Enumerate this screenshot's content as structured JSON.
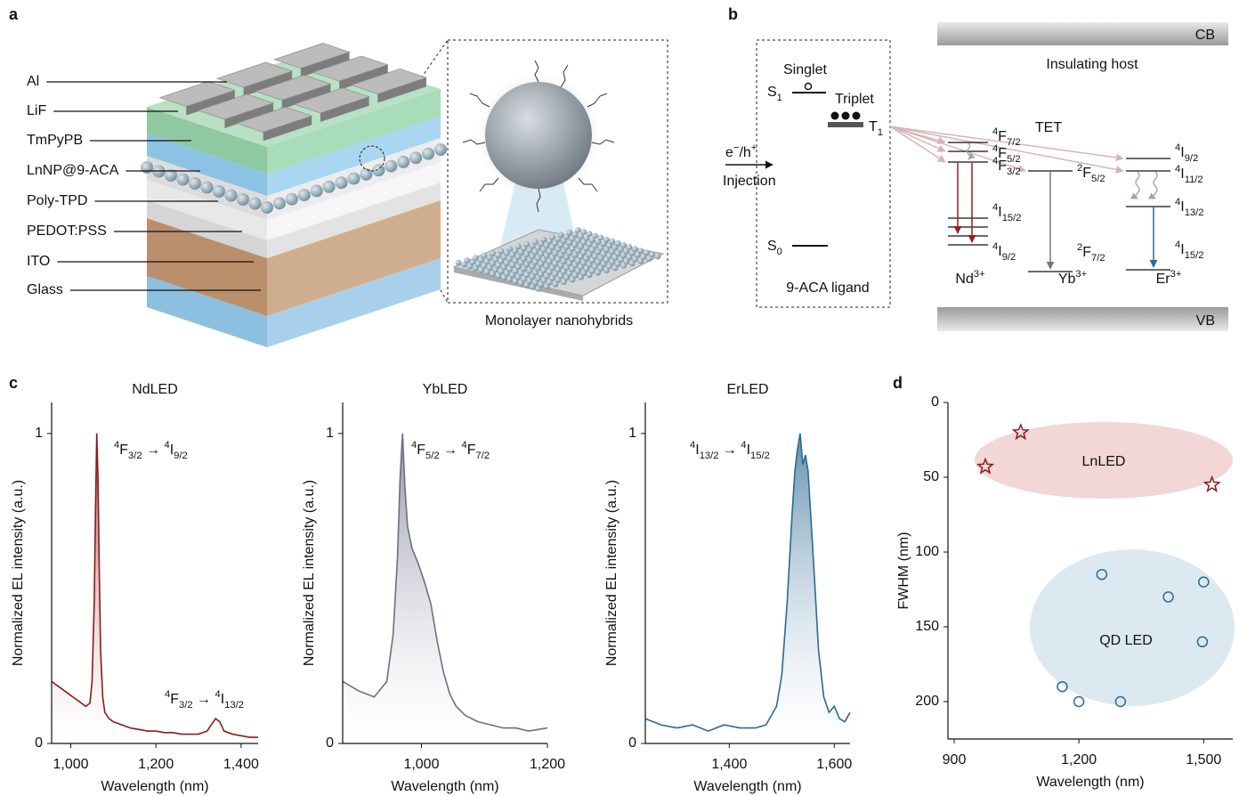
{
  "panel_labels": [
    "a",
    "b",
    "c",
    "d"
  ],
  "panel_a": {
    "layers": [
      "Al",
      "LiF",
      "TmPyPB",
      "LnNP@9-ACA",
      "Poly-TPD",
      "PEDOT:PSS",
      "ITO",
      "Glass"
    ],
    "inset_caption": "Monolayer nanohybrids"
  },
  "panel_b": {
    "ligand": {
      "singlet": "Singlet",
      "triplet": "Triplet",
      "s1": [
        {
          "text": "S"
        },
        {
          "sub": "1"
        }
      ],
      "t1": [
        {
          "text": "T"
        },
        {
          "sub": "1"
        }
      ],
      "s0": [
        {
          "text": "S"
        },
        {
          "sub": "0"
        }
      ],
      "charges": [
        {
          "text": "e"
        },
        {
          "sup": "−"
        },
        {
          "text": "/h"
        },
        {
          "sup": "+"
        }
      ],
      "injection": "Injection",
      "caption": "9-ACA ligand"
    },
    "host": {
      "cb": "CB",
      "vb": "VB",
      "caption": "Insulating host",
      "tet": "TET"
    },
    "ions": [
      {
        "name": [
          {
            "text": "Nd"
          },
          {
            "sup": "3+"
          }
        ],
        "levels": [
          [
            {
              "sup": "4"
            },
            {
              "text": "F"
            },
            {
              "sub": "7/2"
            }
          ],
          [
            {
              "sup": "4"
            },
            {
              "text": "F"
            },
            {
              "sub": "5/2"
            }
          ],
          [
            {
              "sup": "4"
            },
            {
              "text": "F"
            },
            {
              "sub": "3/2"
            }
          ],
          [
            {
              "sup": "4"
            },
            {
              "text": "I"
            },
            {
              "sub": "15/2"
            }
          ],
          [
            {
              "sup": "4"
            },
            {
              "text": "I"
            },
            {
              "sub": "9/2"
            }
          ]
        ]
      },
      {
        "name": [
          {
            "text": "Yb"
          },
          {
            "sup": "3+"
          }
        ],
        "levels": [
          [
            {
              "sup": "2"
            },
            {
              "text": "F"
            },
            {
              "sub": "5/2"
            }
          ],
          [
            {
              "sup": "2"
            },
            {
              "text": "F"
            },
            {
              "sub": "7/2"
            }
          ]
        ]
      },
      {
        "name": [
          {
            "text": "Er"
          },
          {
            "sup": "3+"
          }
        ],
        "levels": [
          [
            {
              "sup": "4"
            },
            {
              "text": "I"
            },
            {
              "sub": "9/2"
            }
          ],
          [
            {
              "sup": "4"
            },
            {
              "text": "I"
            },
            {
              "sub": "11/2"
            }
          ],
          [
            {
              "sup": "4"
            },
            {
              "text": "I"
            },
            {
              "sub": "13/2"
            }
          ],
          [
            {
              "sup": "4"
            },
            {
              "text": "I"
            },
            {
              "sub": "15/2"
            }
          ]
        ]
      }
    ]
  },
  "chart_data": [
    {
      "type": "line",
      "title": "NdLED",
      "color": "#8b1a1a",
      "x": [
        955,
        965,
        975,
        985,
        995,
        1005,
        1015,
        1025,
        1035,
        1045,
        1050,
        1055,
        1058,
        1061,
        1064,
        1067,
        1070,
        1075,
        1080,
        1090,
        1100,
        1120,
        1140,
        1160,
        1180,
        1200,
        1220,
        1240,
        1260,
        1280,
        1300,
        1320,
        1330,
        1340,
        1350,
        1360,
        1380,
        1400,
        1420,
        1440
      ],
      "values": [
        0.2,
        0.19,
        0.18,
        0.17,
        0.16,
        0.15,
        0.14,
        0.13,
        0.12,
        0.13,
        0.2,
        0.45,
        0.75,
        1.0,
        0.85,
        0.55,
        0.3,
        0.15,
        0.1,
        0.08,
        0.07,
        0.06,
        0.05,
        0.045,
        0.04,
        0.04,
        0.035,
        0.035,
        0.03,
        0.03,
        0.03,
        0.04,
        0.06,
        0.08,
        0.07,
        0.04,
        0.03,
        0.025,
        0.02,
        0.02
      ],
      "xlim": [
        955,
        1440
      ],
      "ylim": [
        0,
        1.1
      ],
      "xticks": [
        {
          "value": 1000,
          "label": "1,000"
        },
        {
          "value": 1200,
          "label": "1,200"
        },
        {
          "value": 1400,
          "label": "1,400"
        }
      ],
      "yticks": [
        0,
        1
      ],
      "xlabel": "Wavelength (nm)",
      "ylabel": "Normalized EL intensity (a.u.)",
      "annotations": [
        [
          {
            "sup": "4"
          },
          {
            "text": "F"
          },
          {
            "sub": "3/2"
          },
          {
            "text": " → "
          },
          {
            "sup": "4"
          },
          {
            "text": "I"
          },
          {
            "sub": "9/2"
          }
        ],
        [
          {
            "sup": "4"
          },
          {
            "text": "F"
          },
          {
            "sub": "3/2"
          },
          {
            "text": " → "
          },
          {
            "sup": "4"
          },
          {
            "text": "I"
          },
          {
            "sub": "13/2"
          }
        ]
      ]
    },
    {
      "type": "line",
      "title": "YbLED",
      "color": "#6b6f86",
      "x": [
        875,
        900,
        925,
        945,
        955,
        962,
        966,
        970,
        974,
        978,
        985,
        995,
        1005,
        1015,
        1025,
        1035,
        1045,
        1055,
        1070,
        1090,
        1110,
        1130,
        1150,
        1170,
        1200
      ],
      "values": [
        0.2,
        0.17,
        0.15,
        0.2,
        0.35,
        0.6,
        0.85,
        1.0,
        0.82,
        0.7,
        0.63,
        0.58,
        0.52,
        0.45,
        0.33,
        0.23,
        0.16,
        0.12,
        0.09,
        0.07,
        0.06,
        0.05,
        0.05,
        0.04,
        0.05
      ],
      "xlim": [
        875,
        1200
      ],
      "ylim": [
        0,
        1.1
      ],
      "xticks": [
        {
          "value": 1000,
          "label": "1,000"
        },
        {
          "value": 1200,
          "label": "1,200"
        }
      ],
      "yticks": [
        0,
        1
      ],
      "xlabel": "Wavelength (nm)",
      "ylabel": "Normalized EL intensity (a.u.)",
      "annotations": [
        [
          {
            "sup": "4"
          },
          {
            "text": "F"
          },
          {
            "sub": "5/2"
          },
          {
            "text": " → "
          },
          {
            "sup": "4"
          },
          {
            "text": "F"
          },
          {
            "sub": "7/2"
          }
        ]
      ]
    },
    {
      "type": "line",
      "title": "ErLED",
      "color": "#2a6a93",
      "x": [
        1240,
        1270,
        1300,
        1330,
        1360,
        1390,
        1420,
        1450,
        1470,
        1490,
        1500,
        1510,
        1520,
        1525,
        1530,
        1535,
        1540,
        1545,
        1550,
        1560,
        1570,
        1580,
        1590,
        1600,
        1610,
        1620,
        1630
      ],
      "values": [
        0.08,
        0.06,
        0.05,
        0.06,
        0.04,
        0.06,
        0.05,
        0.05,
        0.06,
        0.12,
        0.22,
        0.45,
        0.75,
        0.88,
        0.95,
        1.0,
        0.9,
        0.93,
        0.88,
        0.6,
        0.3,
        0.15,
        0.1,
        0.12,
        0.08,
        0.07,
        0.1
      ],
      "xlim": [
        1240,
        1630
      ],
      "ylim": [
        0,
        1.1
      ],
      "xticks": [
        {
          "value": 1400,
          "label": "1,400"
        },
        {
          "value": 1600,
          "label": "1,600"
        }
      ],
      "yticks": [
        0,
        1
      ],
      "xlabel": "Wavelength (nm)",
      "ylabel": "Normalized EL intensity (a.u.)",
      "annotations": [
        [
          {
            "sup": "4"
          },
          {
            "text": "I"
          },
          {
            "sub": "13/2"
          },
          {
            "text": " → "
          },
          {
            "sup": "4"
          },
          {
            "text": "I"
          },
          {
            "sub": "15/2"
          }
        ]
      ]
    },
    {
      "type": "scatter",
      "series": [
        {
          "name": "LnLED",
          "color": "#8b1a1a",
          "marker": "star",
          "x": [
            975,
            1060,
            1520
          ],
          "values": [
            43,
            20,
            55
          ]
        },
        {
          "name": "QD LED",
          "color": "#2f6b8f",
          "marker": "circle",
          "x": [
            1255,
            1415,
            1500,
            1497,
            1160,
            1200,
            1300
          ],
          "values": [
            115,
            130,
            120,
            160,
            190,
            200,
            200
          ]
        }
      ],
      "xlim": [
        885,
        1570
      ],
      "ylim": [
        225,
        0
      ],
      "xticks": [
        900,
        {
          "value": 1200,
          "label": "1,200"
        },
        {
          "value": 1500,
          "label": "1,500"
        }
      ],
      "yticks": [
        0,
        50,
        100,
        150,
        200
      ],
      "xlabel": "Wavelength (nm)",
      "ylabel": "FWHM (nm)"
    }
  ]
}
